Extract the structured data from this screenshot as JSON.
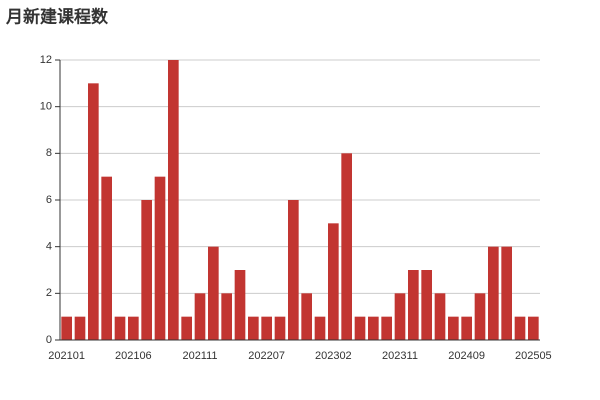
{
  "chart_data": {
    "type": "bar",
    "title": "月新建课程数",
    "categories": [
      "202101",
      null,
      null,
      null,
      null,
      "202106",
      null,
      null,
      null,
      null,
      "202111",
      null,
      null,
      null,
      null,
      "202207",
      null,
      null,
      null,
      null,
      "202302",
      null,
      null,
      null,
      null,
      "202311",
      null,
      null,
      null,
      null,
      "202409",
      null,
      null,
      null,
      null,
      "202505"
    ],
    "values": [
      1,
      1,
      11,
      7,
      1,
      1,
      6,
      7,
      12,
      1,
      2,
      4,
      2,
      3,
      1,
      1,
      1,
      6,
      2,
      1,
      5,
      8,
      1,
      1,
      1,
      2,
      3,
      3,
      2,
      1,
      1,
      2,
      4,
      4,
      1,
      1
    ],
    "color": "#c23531",
    "ylim": [
      0,
      12
    ],
    "yticks": [
      0,
      2,
      4,
      6,
      8,
      10,
      12
    ],
    "grid": true
  }
}
